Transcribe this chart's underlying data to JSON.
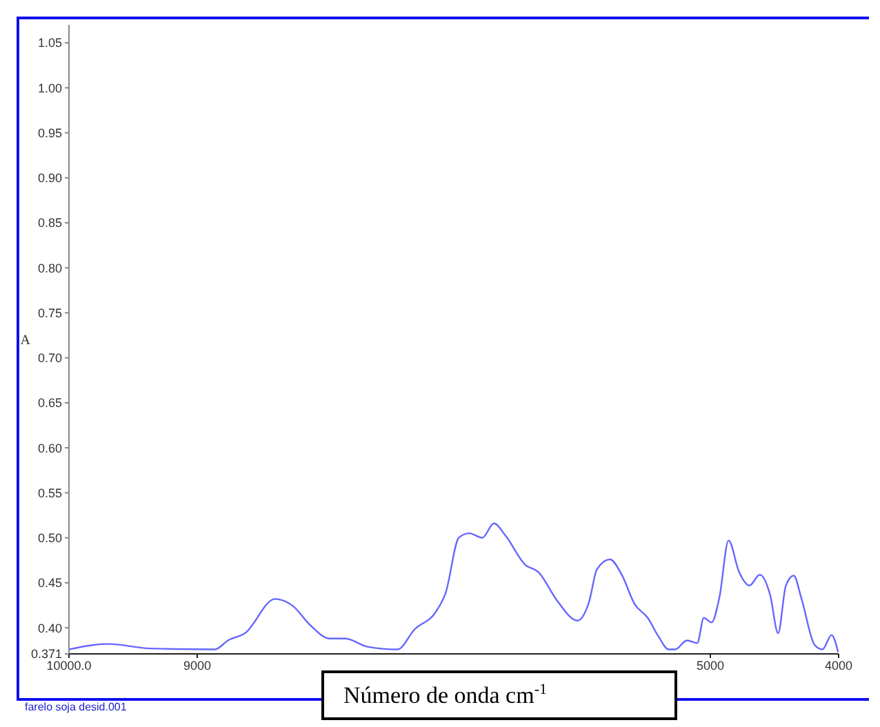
{
  "chart_data": {
    "type": "line",
    "xlabel": "Número de onda cm$^{-1}$",
    "ylabel": "A",
    "annotations": [
      "farelo soja desid.001"
    ],
    "x": [
      10000,
      9807,
      9695,
      9370,
      8862,
      8760,
      8628,
      8394,
      8252,
      8120,
      7967,
      7846,
      7673,
      7439,
      7307,
      7134,
      7063,
      6961,
      6880,
      6778,
      6687,
      6595,
      6443,
      6341,
      6189,
      6037,
      5945,
      5884,
      5783,
      5691,
      5589,
      5488,
      5407,
      5325,
      5274,
      5183,
      5102,
      5051,
      4990,
      4929,
      4858,
      4776,
      4695,
      4614,
      4533,
      4472,
      4411,
      4350,
      4289,
      4187,
      4126,
      4055,
      4004
    ],
    "series": [
      {
        "color": "#6666ff",
        "values": [
          0.376,
          0.381,
          0.382,
          0.377,
          0.376,
          0.386,
          0.394,
          0.432,
          0.424,
          0.403,
          0.388,
          0.388,
          0.379,
          0.376,
          0.398,
          0.419,
          0.439,
          0.5,
          0.505,
          0.5,
          0.516,
          0.502,
          0.47,
          0.462,
          0.429,
          0.408,
          0.429,
          0.465,
          0.476,
          0.459,
          0.426,
          0.411,
          0.391,
          0.376,
          0.376,
          0.386,
          0.383,
          0.411,
          0.406,
          0.434,
          0.497,
          0.462,
          0.447,
          0.459,
          0.436,
          0.394,
          0.447,
          0.458,
          0.432,
          0.381,
          0.376,
          0.392,
          0.373
        ]
      }
    ],
    "xlim": [
      10000,
      4000
    ],
    "xticks": [
      {
        "value": 10000,
        "label": "10000.0"
      },
      9000,
      5000,
      4000
    ],
    "ylim": [
      0.371,
      1.07
    ],
    "yticks": [
      {
        "value": 0.371,
        "label": "0.371"
      },
      {
        "value": 0.4,
        "label": "0.40"
      },
      0.45,
      {
        "value": 0.5,
        "label": "0.50"
      },
      0.55,
      {
        "value": 0.6,
        "label": "0.60"
      },
      0.65,
      {
        "value": 0.7,
        "label": "0.70"
      },
      0.75,
      {
        "value": 0.8,
        "label": "0.80"
      },
      0.85,
      {
        "value": 0.9,
        "label": "0.90"
      },
      0.95,
      {
        "value": 1,
        "label": "1.00"
      },
      1.05
    ],
    "grid": false,
    "marker": "none",
    "line_style": "solid"
  }
}
